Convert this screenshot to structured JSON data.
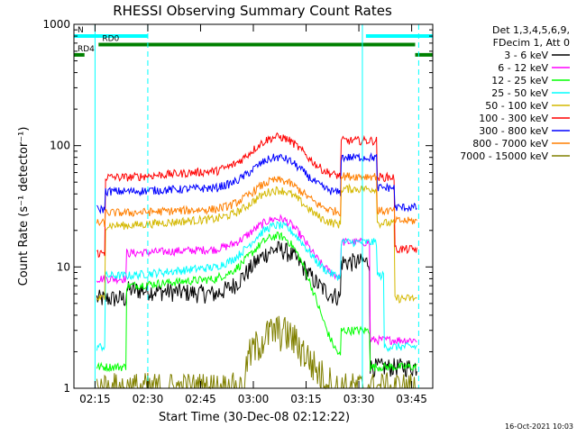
{
  "chart_data": {
    "type": "line",
    "title": "RHESSI Observing Summary Count Rates",
    "xlabel": "Start Time (30-Dec-08 02:12:22)",
    "ylabel": "Count Rate (s⁻¹ detector⁻¹)",
    "y_scale": "log",
    "x_range": [
      "02:09",
      "03:51"
    ],
    "ylim": [
      1,
      1000
    ],
    "x_ticks": [
      "02:15",
      "02:30",
      "02:45",
      "03:00",
      "03:15",
      "03:30",
      "03:45"
    ],
    "y_ticks": [
      {
        "value": 1,
        "label": "1"
      },
      {
        "value": 10,
        "label": "10"
      },
      {
        "value": 100,
        "label": "100"
      },
      {
        "value": 1000,
        "label": "1000"
      }
    ],
    "grid": false,
    "legend_placement": "right",
    "legend_header": [
      "Det 1,3,4,5,6,9,",
      "FDecim 1, Att 0"
    ],
    "footer_timestamp": "16-Oct-2021 10:03",
    "data_window": [
      "02:15:30",
      "03:46:30"
    ],
    "night_edges": [
      "02:25",
      "03:35"
    ],
    "series": [
      {
        "name": "3 - 6 keV",
        "color": "#000000",
        "rise": "02:24",
        "fall": "03:33",
        "values": [
          5.5,
          6.5,
          14,
          6,
          5.5,
          6.5,
          1.5
        ]
      },
      {
        "name": "6 - 12 keV",
        "color": "#ff00ff",
        "rise": "02:24",
        "fall": "03:33",
        "values": [
          8,
          13,
          25,
          14,
          8,
          9,
          2.5
        ]
      },
      {
        "name": "12 - 25 keV",
        "color": "#00ff00",
        "rise": "02:24",
        "fall": "03:33",
        "values": [
          1.5,
          7,
          18,
          8,
          1.5,
          2,
          1.5
        ]
      },
      {
        "name": "25 - 50 keV",
        "color": "#00ffff",
        "rise": "02:18",
        "fall": "03:37",
        "values": [
          2.2,
          8.5,
          22,
          10,
          8,
          8.5,
          2.2
        ]
      },
      {
        "name": "50 - 100 keV",
        "color": "#d4b800",
        "rise": "02:18",
        "fall": "03:40",
        "values": [
          5.5,
          22,
          43,
          25,
          22,
          23,
          5.5
        ]
      },
      {
        "name": "100 - 300 keV",
        "color": "#ff0000",
        "rise": "02:18",
        "fall": "03:40",
        "values": [
          13,
          55,
          118,
          62,
          55,
          55,
          14
        ]
      },
      {
        "name": "300 - 800 keV",
        "color": "#0000ff",
        "rise": "02:18",
        "fall": "03:40",
        "values": [
          30,
          42,
          80,
          45,
          40,
          45,
          31
        ]
      },
      {
        "name": "800 - 7000 keV",
        "color": "#ff7f00",
        "rise": "02:18",
        "fall": "03:40",
        "values": [
          23,
          28,
          52,
          30,
          28,
          29,
          24
        ]
      },
      {
        "name": "7000 - 15000 keV",
        "color": "#808000",
        "rise": "02:58",
        "fall": "03:22",
        "values": [
          1,
          1,
          3,
          1,
          1,
          1,
          1
        ]
      }
    ],
    "series_points_note": "values = [pre-rise level, plateau start, peak at 03:07, plateau 02:50, plateau end, late level, post-fall level]",
    "annotations": [
      {
        "label": "N",
        "color": "#00ffff",
        "segments": [
          [
            "02:09",
            "02:30"
          ],
          [
            "03:32",
            "03:51"
          ]
        ],
        "y": 800
      },
      {
        "label": "RD0",
        "color": "#008000",
        "segments": [
          [
            "02:16",
            "03:46"
          ]
        ],
        "y": 680
      },
      {
        "label": "RD4",
        "color": "#008000",
        "segments": [
          [
            "02:09",
            "02:12"
          ],
          [
            "03:46",
            "03:51"
          ]
        ],
        "y": 560
      }
    ],
    "vlines": [
      {
        "time": "02:15:00",
        "color": "#00ffff",
        "style": "solid"
      },
      {
        "time": "02:30:00",
        "color": "#00ffff",
        "style": "dashed"
      },
      {
        "time": "03:31:00",
        "color": "#00ffff",
        "style": "solid"
      },
      {
        "time": "03:47:00",
        "color": "#00ffff",
        "style": "dashed"
      }
    ]
  }
}
